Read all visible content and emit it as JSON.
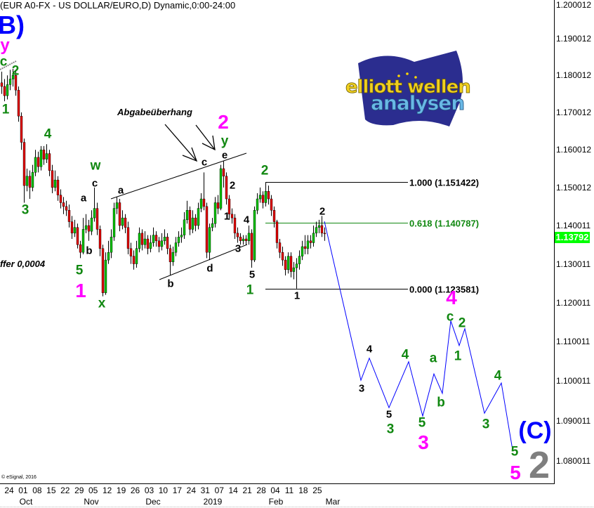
{
  "title": "(EUR A0-FX - US DOLLAR/EURO,D) Dynamic,0:00-24:00",
  "copyright": "© eSignal, 2016",
  "logo": {
    "line1": "elliott wellen",
    "line2": "analysen"
  },
  "notes": {
    "spread": "ffer 0,0004",
    "distribution": "Abgabeüberhang"
  },
  "current_price": "1.13792",
  "colors": {
    "up": "#00c000",
    "down": "#e00000",
    "forecast": "#0000ff",
    "fib_618": "#118811",
    "current_price_bg": "#00ff00"
  },
  "annotations": [
    {
      "text": "B)"
    },
    {
      "text": "y"
    },
    {
      "text": "c"
    },
    {
      "text": "2"
    },
    {
      "text": "1"
    },
    {
      "text": "3"
    },
    {
      "text": "4"
    },
    {
      "text": "a"
    },
    {
      "text": "b"
    },
    {
      "text": "w"
    },
    {
      "text": "c"
    },
    {
      "text": "5"
    },
    {
      "text": "1"
    },
    {
      "text": "x"
    },
    {
      "text": "a"
    },
    {
      "text": "b"
    },
    {
      "text": "c"
    },
    {
      "text": "d"
    },
    {
      "text": "e"
    },
    {
      "text": "y"
    },
    {
      "text": "2"
    },
    {
      "text": "2"
    },
    {
      "text": "1"
    },
    {
      "text": "4"
    },
    {
      "text": "3"
    },
    {
      "text": "5"
    },
    {
      "text": "1"
    },
    {
      "text": "2"
    },
    {
      "text": "2"
    },
    {
      "text": "1"
    },
    {
      "text": "3"
    },
    {
      "text": "4"
    },
    {
      "text": "5"
    },
    {
      "text": "3"
    },
    {
      "text": "4"
    },
    {
      "text": "5"
    },
    {
      "text": "3"
    },
    {
      "text": "a"
    },
    {
      "text": "b"
    },
    {
      "text": "c"
    },
    {
      "text": "4"
    },
    {
      "text": "1"
    },
    {
      "text": "2"
    },
    {
      "text": "3"
    },
    {
      "text": "4"
    },
    {
      "text": "5"
    },
    {
      "text": "5"
    },
    {
      "text": "(C)"
    },
    {
      "text": "2"
    }
  ],
  "chart_data": {
    "type": "candlestick",
    "title": "(EUR A0-FX - US DOLLAR/EURO,D) Dynamic,0:00-24:00",
    "y_scale": "log",
    "ylim": [
      1.0775,
      1.2005
    ],
    "y_ticks": [
      "1.200012",
      "1.190012",
      "1.180012",
      "1.170012",
      "1.160012",
      "1.150012",
      "1.140011",
      "1.130011",
      "1.120011",
      "1.110011",
      "1.100011",
      "1.090011",
      "1.080011"
    ],
    "x_ticks": [
      "24",
      "01",
      "08",
      "15",
      "22",
      "29",
      "05",
      "12",
      "19",
      "26",
      "03",
      "10",
      "17",
      "24",
      "31",
      "07",
      "14",
      "21",
      "28",
      "04",
      "11",
      "18",
      "25"
    ],
    "x_months": [
      "Oct",
      "Nov",
      "Dec",
      "2019",
      "Feb",
      "Mar"
    ],
    "grid": false,
    "candles_fields": [
      "date",
      "open",
      "high",
      "low",
      "close"
    ],
    "candles": [
      [
        "2018-09-19",
        1.178,
        1.181,
        1.175,
        1.177
      ],
      [
        "2018-09-20",
        1.177,
        1.179,
        1.173,
        1.1745
      ],
      [
        "2018-09-21",
        1.1745,
        1.18,
        1.1735,
        1.1775
      ],
      [
        "2018-09-24",
        1.1775,
        1.1815,
        1.176,
        1.179
      ],
      [
        "2018-09-25",
        1.179,
        1.1818,
        1.177,
        1.18
      ],
      [
        "2018-09-26",
        1.18,
        1.1815,
        1.1745,
        1.176
      ],
      [
        "2018-09-27",
        1.176,
        1.177,
        1.1675,
        1.169
      ],
      [
        "2018-09-28",
        1.169,
        1.17,
        1.16,
        1.162
      ],
      [
        "2018-10-01",
        1.162,
        1.163,
        1.146,
        1.1505
      ],
      [
        "2018-10-02",
        1.1505,
        1.155,
        1.149,
        1.153
      ],
      [
        "2018-10-03",
        1.153,
        1.1545,
        1.147,
        1.15
      ],
      [
        "2018-10-04",
        1.15,
        1.156,
        1.149,
        1.154
      ],
      [
        "2018-10-05",
        1.154,
        1.16,
        1.153,
        1.158
      ],
      [
        "2018-10-08",
        1.158,
        1.1595,
        1.154,
        1.1555
      ],
      [
        "2018-10-09",
        1.1555,
        1.161,
        1.1545,
        1.16
      ],
      [
        "2018-10-10",
        1.16,
        1.161,
        1.156,
        1.1575
      ],
      [
        "2018-10-11",
        1.1575,
        1.1615,
        1.1565,
        1.159
      ],
      [
        "2018-10-12",
        1.159,
        1.16,
        1.153,
        1.1545
      ],
      [
        "2018-10-15",
        1.1545,
        1.156,
        1.1485,
        1.15
      ],
      [
        "2018-10-16",
        1.15,
        1.1545,
        1.149,
        1.152
      ],
      [
        "2018-10-17",
        1.152,
        1.153,
        1.1465,
        1.148
      ],
      [
        "2018-10-18",
        1.148,
        1.1495,
        1.1445,
        1.146
      ],
      [
        "2018-10-19",
        1.146,
        1.1475,
        1.143,
        1.145
      ],
      [
        "2018-10-22",
        1.145,
        1.1465,
        1.1425,
        1.144
      ],
      [
        "2018-10-23",
        1.144,
        1.1455,
        1.1395,
        1.141
      ],
      [
        "2018-10-24",
        1.141,
        1.1425,
        1.1365,
        1.138
      ],
      [
        "2018-10-25",
        1.138,
        1.1415,
        1.137,
        1.1395
      ],
      [
        "2018-10-26",
        1.1395,
        1.1405,
        1.134,
        1.135
      ],
      [
        "2018-10-29",
        1.135,
        1.136,
        1.1315,
        1.133
      ],
      [
        "2018-10-30",
        1.133,
        1.142,
        1.1325,
        1.139
      ],
      [
        "2018-10-31",
        1.139,
        1.143,
        1.138,
        1.14
      ],
      [
        "2018-11-01",
        1.14,
        1.1415,
        1.136,
        1.1385
      ],
      [
        "2018-11-02",
        1.1385,
        1.144,
        1.1375,
        1.142
      ],
      [
        "2018-11-05",
        1.142,
        1.15,
        1.141,
        1.1445
      ],
      [
        "2018-11-06",
        1.1445,
        1.146,
        1.1375,
        1.139
      ],
      [
        "2018-11-07",
        1.139,
        1.14,
        1.132,
        1.134
      ],
      [
        "2018-11-08",
        1.134,
        1.135,
        1.1216,
        1.1225
      ],
      [
        "2018-11-09",
        1.1225,
        1.133,
        1.122,
        1.131
      ],
      [
        "2018-11-12",
        1.131,
        1.136,
        1.13,
        1.133
      ],
      [
        "2018-11-13",
        1.133,
        1.139,
        1.1315,
        1.137
      ],
      [
        "2018-11-14",
        1.137,
        1.146,
        1.136,
        1.1445
      ],
      [
        "2018-11-15",
        1.1445,
        1.1475,
        1.143,
        1.146
      ],
      [
        "2018-11-16",
        1.146,
        1.147,
        1.1385,
        1.14
      ],
      [
        "2018-11-19",
        1.14,
        1.144,
        1.139,
        1.142
      ],
      [
        "2018-11-20",
        1.142,
        1.143,
        1.138,
        1.1395
      ],
      [
        "2018-11-21",
        1.1395,
        1.141,
        1.1325,
        1.134
      ],
      [
        "2018-11-22",
        1.134,
        1.1355,
        1.13,
        1.132
      ],
      [
        "2018-11-23",
        1.132,
        1.1335,
        1.1285,
        1.13
      ],
      [
        "2018-11-26",
        1.13,
        1.136,
        1.129,
        1.134
      ],
      [
        "2018-11-27",
        1.134,
        1.1395,
        1.133,
        1.138
      ],
      [
        "2018-11-28",
        1.138,
        1.139,
        1.1335,
        1.135
      ],
      [
        "2018-11-29",
        1.135,
        1.1385,
        1.134,
        1.1365
      ],
      [
        "2018-11-30",
        1.1365,
        1.1375,
        1.1325,
        1.134
      ],
      [
        "2018-12-03",
        1.134,
        1.1375,
        1.133,
        1.1355
      ],
      [
        "2018-12-04",
        1.1355,
        1.1395,
        1.1345,
        1.1375
      ],
      [
        "2018-12-05",
        1.1375,
        1.1385,
        1.1345,
        1.136
      ],
      [
        "2018-12-06",
        1.136,
        1.137,
        1.133,
        1.1345
      ],
      [
        "2018-12-07",
        1.1345,
        1.138,
        1.1335,
        1.136
      ],
      [
        "2018-12-10",
        1.136,
        1.139,
        1.135,
        1.137
      ],
      [
        "2018-12-11",
        1.137,
        1.138,
        1.1325,
        1.134
      ],
      [
        "2018-12-12",
        1.134,
        1.135,
        1.127,
        1.1305
      ],
      [
        "2018-12-13",
        1.1305,
        1.1345,
        1.1295,
        1.133
      ],
      [
        "2018-12-14",
        1.133,
        1.137,
        1.132,
        1.1355
      ],
      [
        "2018-12-17",
        1.1355,
        1.1385,
        1.1345,
        1.137
      ],
      [
        "2018-12-18",
        1.137,
        1.1395,
        1.1355,
        1.1375
      ],
      [
        "2018-12-19",
        1.1375,
        1.1435,
        1.1365,
        1.1415
      ],
      [
        "2018-12-20",
        1.1415,
        1.1465,
        1.1405,
        1.144
      ],
      [
        "2018-12-21",
        1.144,
        1.145,
        1.1375,
        1.139
      ],
      [
        "2018-12-24",
        1.139,
        1.144,
        1.138,
        1.142
      ],
      [
        "2018-12-25",
        1.142,
        1.143,
        1.1385,
        1.14
      ],
      [
        "2018-12-26",
        1.14,
        1.146,
        1.139,
        1.1445
      ],
      [
        "2018-12-27",
        1.1445,
        1.1485,
        1.1435,
        1.147
      ],
      [
        "2018-12-28",
        1.147,
        1.154,
        1.144,
        1.145
      ],
      [
        "2018-12-31",
        1.145,
        1.146,
        1.1315,
        1.133
      ],
      [
        "2019-01-01",
        1.133,
        1.1405,
        1.131,
        1.1395
      ],
      [
        "2019-01-02",
        1.1395,
        1.142,
        1.1385,
        1.1405
      ],
      [
        "2019-01-03",
        1.1405,
        1.1475,
        1.1395,
        1.146
      ],
      [
        "2019-01-04",
        1.146,
        1.148,
        1.143,
        1.1445
      ],
      [
        "2019-01-07",
        1.1445,
        1.156,
        1.144,
        1.155
      ],
      [
        "2019-01-08",
        1.155,
        1.157,
        1.15,
        1.153
      ],
      [
        "2019-01-09",
        1.153,
        1.154,
        1.1455,
        1.147
      ],
      [
        "2019-01-10",
        1.147,
        1.148,
        1.1415,
        1.143
      ],
      [
        "2019-01-11",
        1.143,
        1.1445,
        1.1405,
        1.142
      ],
      [
        "2019-01-14",
        1.142,
        1.143,
        1.1365,
        1.138
      ],
      [
        "2019-01-15",
        1.138,
        1.1395,
        1.1355,
        1.137
      ],
      [
        "2019-01-16",
        1.137,
        1.138,
        1.135,
        1.136
      ],
      [
        "2019-01-17",
        1.136,
        1.1375,
        1.135,
        1.1365
      ],
      [
        "2019-01-18",
        1.1365,
        1.1375,
        1.135,
        1.136
      ],
      [
        "2019-01-21",
        1.136,
        1.14,
        1.135,
        1.138
      ],
      [
        "2019-01-22",
        1.138,
        1.139,
        1.129,
        1.131
      ],
      [
        "2019-01-23",
        1.131,
        1.145,
        1.1305,
        1.144
      ],
      [
        "2019-01-24",
        1.144,
        1.1485,
        1.143,
        1.147
      ],
      [
        "2019-01-25",
        1.147,
        1.15,
        1.146,
        1.148
      ],
      [
        "2019-01-28",
        1.148,
        1.149,
        1.1445,
        1.146
      ],
      [
        "2019-01-29",
        1.146,
        1.1514,
        1.145,
        1.149
      ],
      [
        "2019-01-30",
        1.149,
        1.1505,
        1.1455,
        1.147
      ],
      [
        "2019-01-31",
        1.147,
        1.148,
        1.1425,
        1.144
      ],
      [
        "2019-02-01",
        1.144,
        1.145,
        1.1395,
        1.141
      ],
      [
        "2019-02-04",
        1.141,
        1.1415,
        1.134,
        1.1355
      ],
      [
        "2019-02-05",
        1.1355,
        1.1365,
        1.1315,
        1.133
      ],
      [
        "2019-02-06",
        1.133,
        1.1345,
        1.1295,
        1.131
      ],
      [
        "2019-02-07",
        1.131,
        1.132,
        1.127,
        1.1285
      ],
      [
        "2019-02-08",
        1.1285,
        1.133,
        1.1275,
        1.132
      ],
      [
        "2019-02-11",
        1.132,
        1.133,
        1.1265,
        1.128
      ],
      [
        "2019-02-12",
        1.128,
        1.1305,
        1.126,
        1.129
      ],
      [
        "2019-02-13",
        1.129,
        1.1315,
        1.1236,
        1.13
      ],
      [
        "2019-02-14",
        1.13,
        1.1335,
        1.1285,
        1.132
      ],
      [
        "2019-02-15",
        1.132,
        1.136,
        1.131,
        1.1345
      ],
      [
        "2019-02-18",
        1.1345,
        1.1375,
        1.1325,
        1.134
      ],
      [
        "2019-02-19",
        1.134,
        1.1375,
        1.1325,
        1.136
      ],
      [
        "2019-02-20",
        1.136,
        1.1375,
        1.134,
        1.1355
      ],
      [
        "2019-02-21",
        1.1355,
        1.14,
        1.1345,
        1.138
      ],
      [
        "2019-02-22",
        1.138,
        1.141,
        1.137,
        1.1395
      ],
      [
        "2019-02-25",
        1.1395,
        1.1415,
        1.138,
        1.14
      ],
      [
        "2019-02-26",
        1.14,
        1.1425,
        1.137,
        1.138
      ],
      [
        "2019-02-27",
        1.138,
        1.1395,
        1.136,
        1.1379
      ]
    ],
    "fibonacci": [
      {
        "label": "1.000 (1.151422)",
        "price": 1.151422
      },
      {
        "label": "0.618 (1.140787)",
        "price": 1.140787
      },
      {
        "label": "0.000 (1.123581)",
        "price": 1.123581
      }
    ],
    "forecast_path": [
      [
        "2019-02-27",
        1.1411
      ],
      [
        "2019-03-18",
        1.1002
      ],
      [
        "2019-03-21",
        1.1058
      ],
      [
        "2019-04-01",
        1.0933
      ],
      [
        "2019-04-10",
        1.1049
      ],
      [
        "2019-04-17",
        1.0912
      ],
      [
        "2019-04-23",
        1.1018
      ],
      [
        "2019-04-26",
        1.0969
      ],
      [
        "2019-05-01",
        1.1153
      ],
      [
        "2019-05-06",
        1.109
      ],
      [
        "2019-05-08",
        1.1133
      ],
      [
        "2019-05-17",
        1.0919
      ],
      [
        "2019-05-27",
        1.0995
      ],
      [
        "2019-05-31",
        1.0828
      ]
    ]
  }
}
